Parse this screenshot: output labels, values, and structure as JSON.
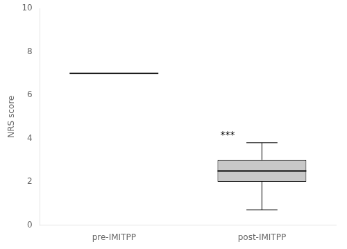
{
  "chart_data": {
    "type": "box",
    "ylabel": "NRS score",
    "categories": [
      "pre-IMITPP",
      "post-IMITPP"
    ],
    "median": [
      7.0,
      2.5
    ],
    "q1": [
      null,
      2.0
    ],
    "q3": [
      null,
      3.0
    ],
    "whisker_low": [
      null,
      0.7
    ],
    "whisker_high": [
      null,
      3.8
    ],
    "color": "#c8c8c8",
    "ylim": [
      0,
      10
    ],
    "yticks": [
      0,
      2,
      4,
      6,
      8,
      10
    ],
    "grid": false,
    "annotations": [
      {
        "text": "***",
        "category": "post-IMITPP",
        "y": 3.9
      }
    ]
  }
}
